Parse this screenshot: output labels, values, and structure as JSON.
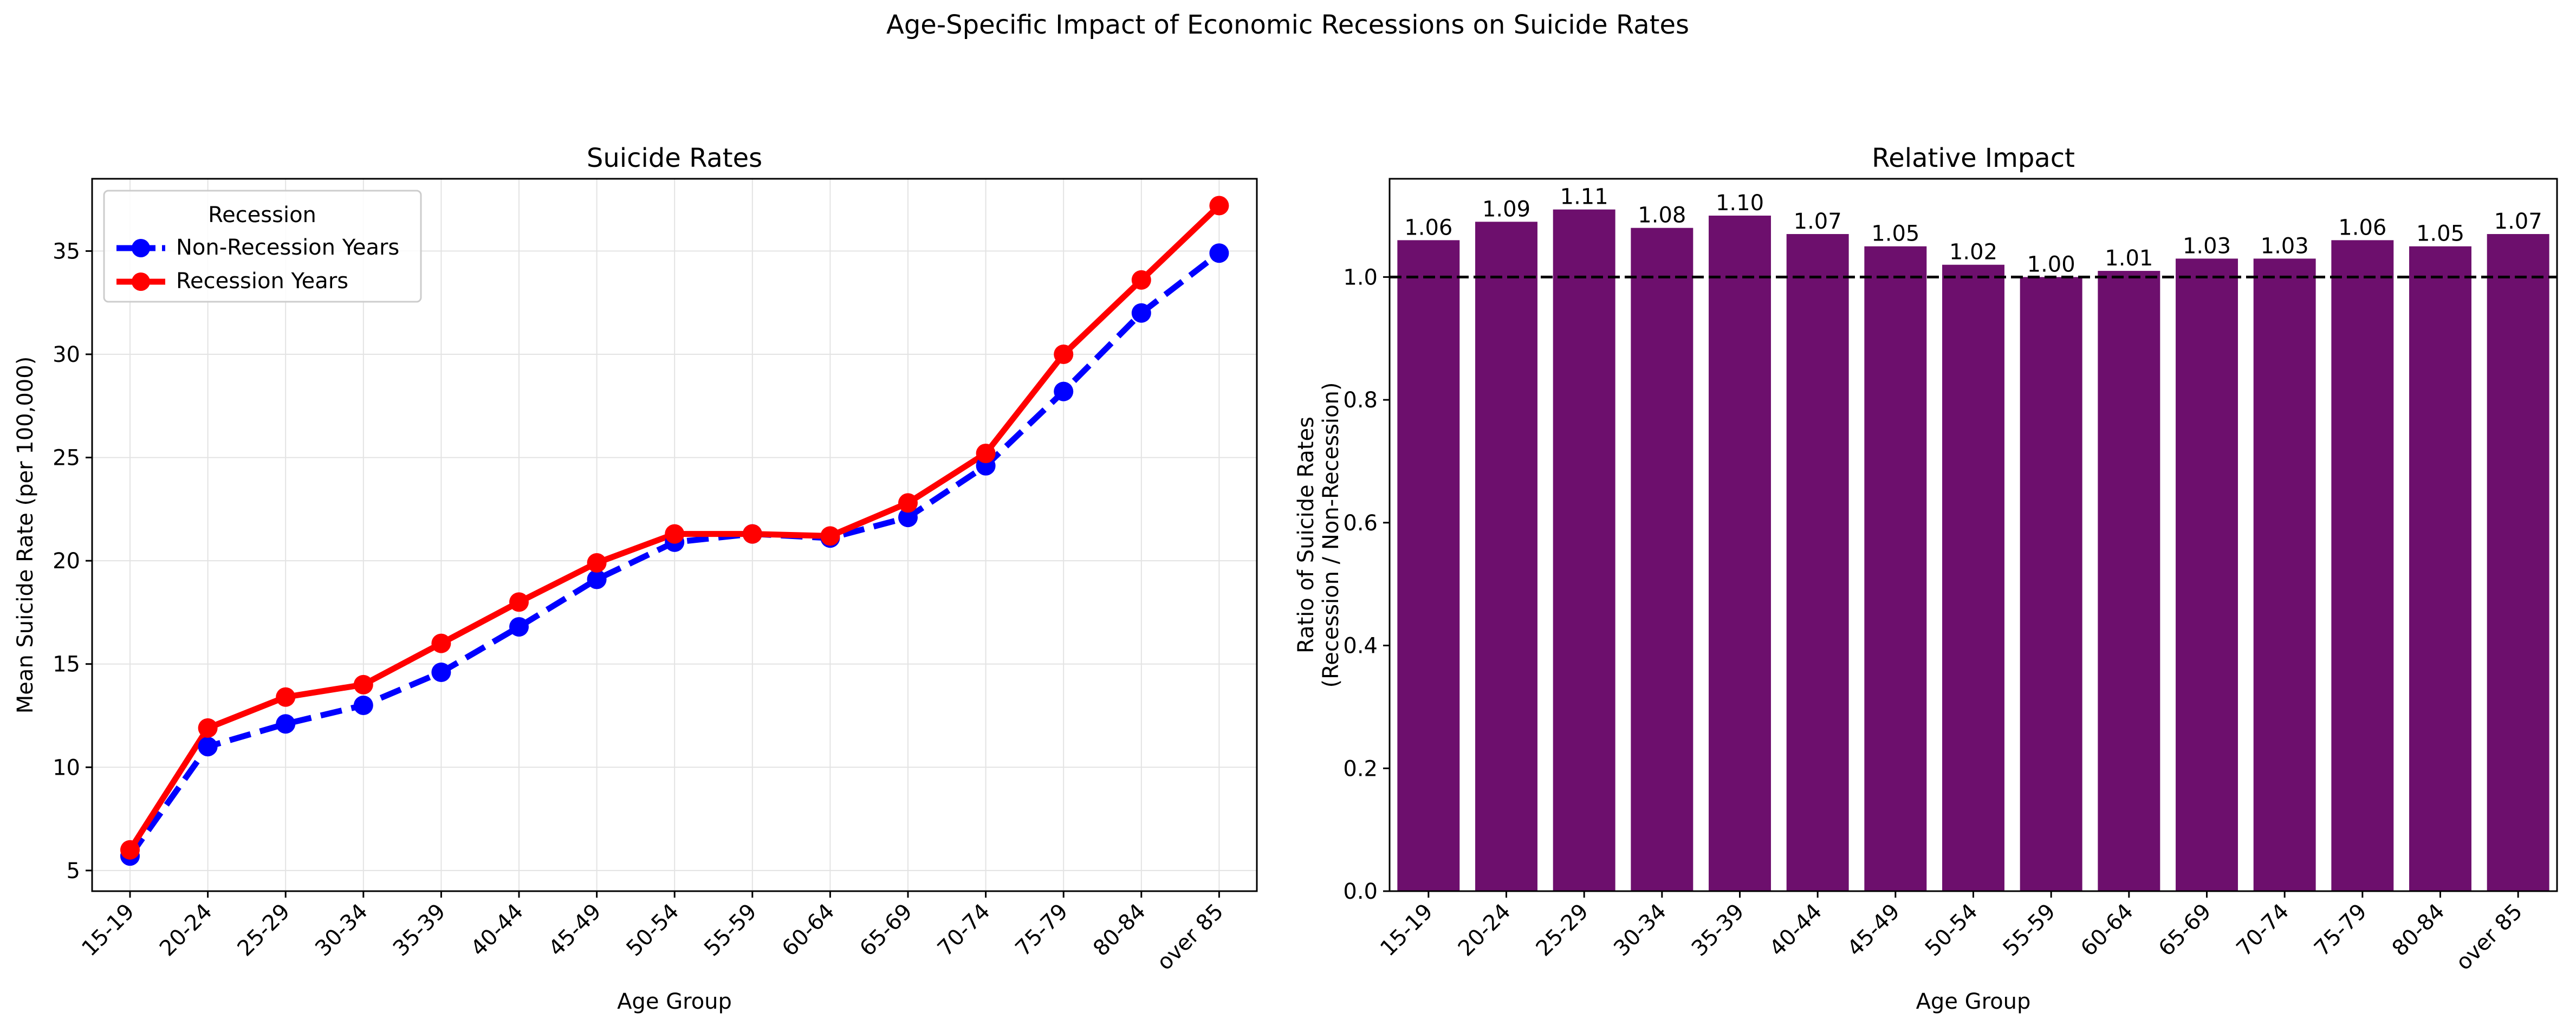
{
  "figure": {
    "suptitle": "Age-Specific Impact of Economic Recessions on Suicide Rates"
  },
  "colors": {
    "non_recession": "#0000ff",
    "recession": "#ff0000",
    "bars": "#6d0f6d",
    "reference_line": "#000000",
    "grid": "#e3e3e3"
  },
  "chart_data": [
    {
      "type": "line",
      "title": "Suicide Rates",
      "xlabel": "Age Group",
      "ylabel": "Mean Suicide Rate (per 100,000)",
      "categories": [
        "15-19",
        "20-24",
        "25-29",
        "30-34",
        "35-39",
        "40-44",
        "45-49",
        "50-54",
        "55-59",
        "60-64",
        "65-69",
        "70-74",
        "75-79",
        "80-84",
        "over 85"
      ],
      "ylim": [
        4.0,
        38.5
      ],
      "yticks": [
        5,
        10,
        15,
        20,
        25,
        30,
        35
      ],
      "grid": true,
      "legend": {
        "title": "Recession",
        "placement": "upper-left"
      },
      "series": [
        {
          "name": "Non-Recession Years",
          "style": "dashed",
          "color": "#0000ff",
          "values": [
            5.7,
            11.0,
            12.1,
            13.0,
            14.6,
            16.8,
            19.1,
            20.9,
            21.3,
            21.1,
            22.1,
            24.6,
            28.2,
            32.0,
            34.9
          ]
        },
        {
          "name": "Recession Years",
          "style": "solid",
          "color": "#ff0000",
          "values": [
            6.0,
            11.9,
            13.4,
            14.0,
            16.0,
            18.0,
            19.9,
            21.3,
            21.3,
            21.2,
            22.8,
            25.2,
            30.0,
            33.6,
            37.2
          ]
        }
      ]
    },
    {
      "type": "bar",
      "title": "Relative Impact",
      "xlabel": "Age Group",
      "ylabel": "Ratio of Suicide Rates\n(Recession / Non-Recession)",
      "categories": [
        "15-19",
        "20-24",
        "25-29",
        "30-34",
        "35-39",
        "40-44",
        "45-49",
        "50-54",
        "55-59",
        "60-64",
        "65-69",
        "70-74",
        "75-79",
        "80-84",
        "over 85"
      ],
      "values": [
        1.06,
        1.09,
        1.11,
        1.08,
        1.1,
        1.07,
        1.05,
        1.02,
        1.0,
        1.01,
        1.03,
        1.03,
        1.06,
        1.05,
        1.07
      ],
      "data_labels": [
        "1.06",
        "1.09",
        "1.11",
        "1.08",
        "1.10",
        "1.07",
        "1.05",
        "1.02",
        "1.00",
        "1.01",
        "1.03",
        "1.03",
        "1.06",
        "1.05",
        "1.07"
      ],
      "ylim": [
        0.0,
        1.16
      ],
      "yticks": [
        0.0,
        0.2,
        0.4,
        0.6,
        0.8,
        1.0
      ],
      "ytick_labels": [
        "0.0",
        "0.2",
        "0.4",
        "0.6",
        "0.8",
        "1.0"
      ],
      "reference_line": {
        "y": 1.0,
        "style": "dashed"
      },
      "grid": false
    }
  ]
}
